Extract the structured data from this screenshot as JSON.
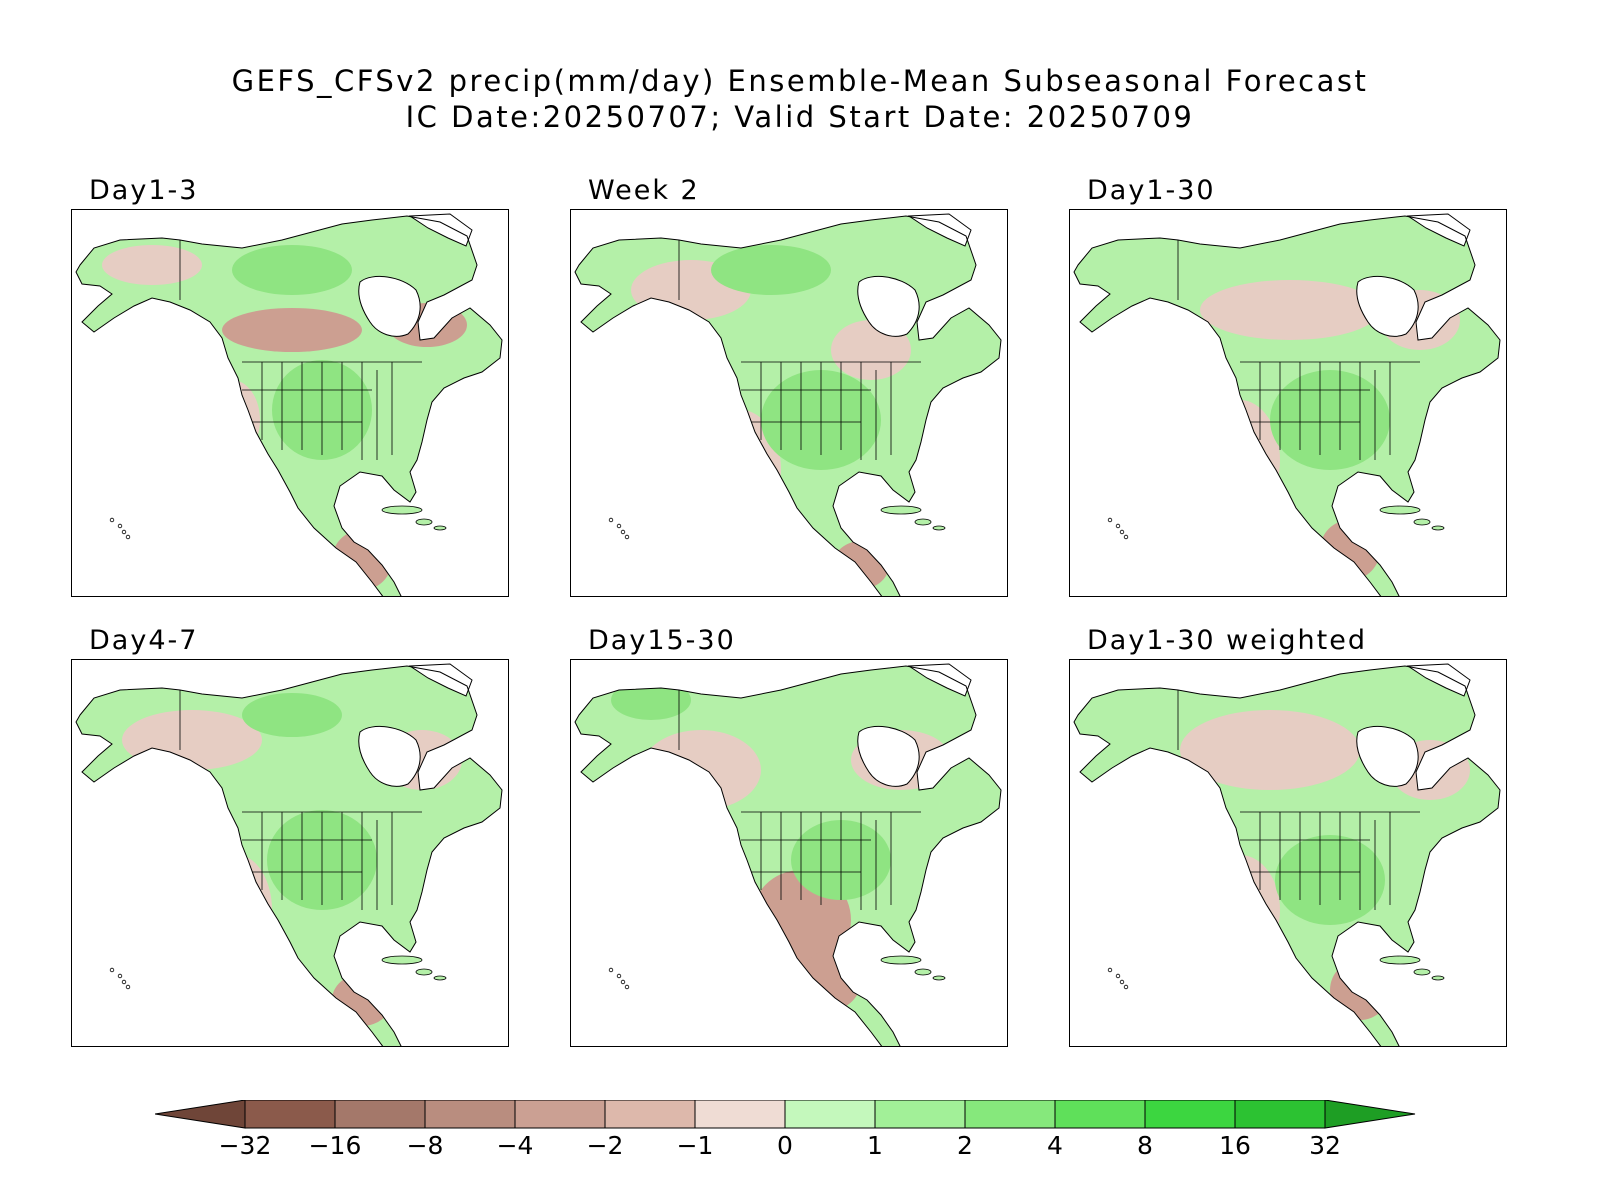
{
  "header": {
    "title": "GEFS_CFSv2 precip(mm/day) Ensemble-Mean Subseasonal Forecast",
    "subtitle": "IC Date:20250707; Valid Start Date: 20250709"
  },
  "panels": [
    {
      "label": "Day1-3"
    },
    {
      "label": "Week 2"
    },
    {
      "label": "Day1-30"
    },
    {
      "label": "Day4-7"
    },
    {
      "label": "Day15-30"
    },
    {
      "label": "Day1-30 weighted"
    }
  ],
  "colorbar": {
    "tick_labels": [
      "-32",
      "-16",
      "-8",
      "-4",
      "-2",
      "-1",
      "0",
      "1",
      "2",
      "4",
      "8",
      "16",
      "32"
    ],
    "colors": [
      "#6f4538",
      "#8b5a4b",
      "#a4786a",
      "#b98d7f",
      "#cba093",
      "#ddb8ab",
      "#efdcd4",
      "#c4f8bc",
      "#a2f098",
      "#86e87c",
      "#5fe05a",
      "#3cd640",
      "#2cc232",
      "#1e9e24"
    ]
  },
  "colors": {
    "land_dry_strong": "#cc9f91",
    "land_dry": "#e6cdc3",
    "land_wet": "#b4f0a8",
    "land_wet_strong": "#8fe482",
    "coast": "#000000"
  }
}
